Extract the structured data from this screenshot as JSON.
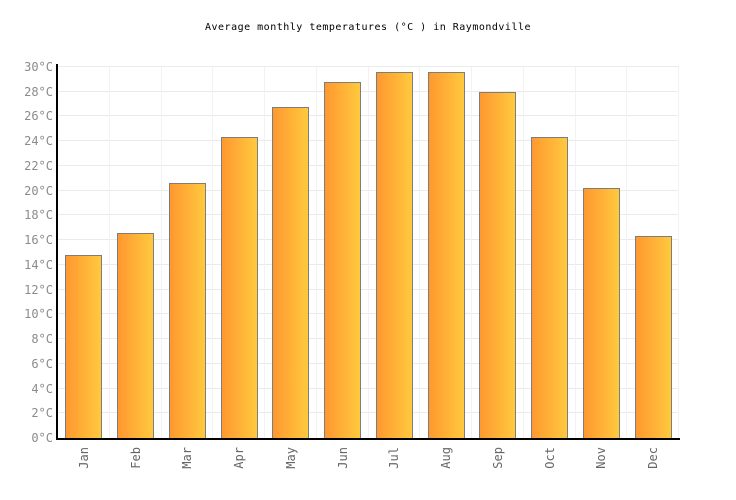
{
  "chart_data": {
    "type": "bar",
    "title": "Average monthly temperatures (°C ) in Raymondville",
    "categories": [
      "Jan",
      "Feb",
      "Mar",
      "Apr",
      "May",
      "Jun",
      "Jul",
      "Aug",
      "Sep",
      "Oct",
      "Nov",
      "Dec"
    ],
    "values": [
      14.8,
      16.6,
      20.6,
      24.3,
      26.8,
      28.8,
      29.6,
      29.6,
      28.0,
      24.3,
      20.2,
      16.3
    ],
    "xlabel": "",
    "ylabel": "",
    "ylim": [
      0,
      30
    ],
    "ytick_step": 2,
    "ytick_suffix": "°C",
    "grid": true,
    "legend": false,
    "x_label_rotation": -90
  },
  "colors": {
    "background": "#ffffff",
    "title_color": "#000000",
    "axis_line": "#000000",
    "gridline_horizontal": "#ebebeb",
    "gridline_vertical": "#f2f2f2",
    "bar_gradient_left": "#ff9830",
    "bar_gradient_right": "#ffc93e",
    "bar_border": "#7d7d7d",
    "tick_label": "#8b8b8b",
    "x_label": "#666666"
  }
}
